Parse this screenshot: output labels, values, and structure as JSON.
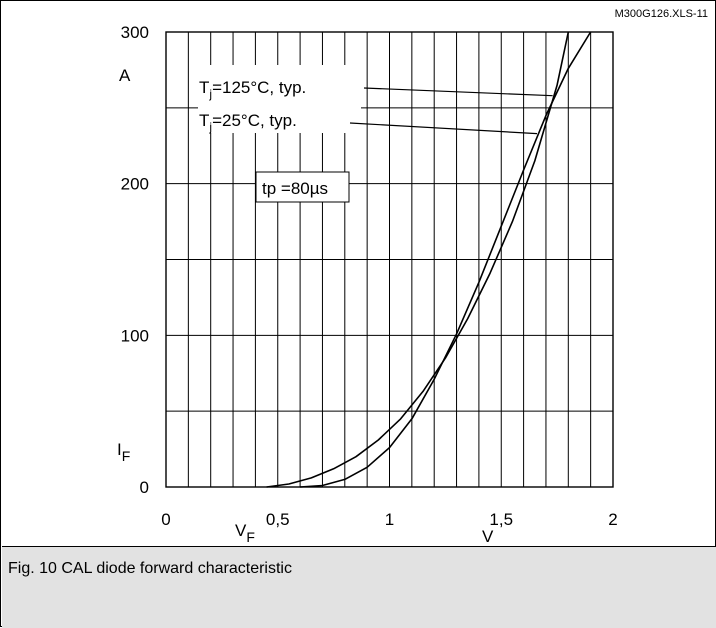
{
  "chart_data": {
    "type": "line",
    "source_tag": "M300G126.XLS-11",
    "xlim": [
      0,
      2
    ],
    "ylim": [
      0,
      300
    ],
    "x_ticks": [
      {
        "value": 0,
        "label": "0"
      },
      {
        "value": 0.5,
        "label": "0,5"
      },
      {
        "value": 1,
        "label": "1"
      },
      {
        "value": 1.5,
        "label": "1,5"
      },
      {
        "value": 2,
        "label": "2"
      }
    ],
    "y_ticks": [
      {
        "value": 0,
        "label": "0"
      },
      {
        "value": 100,
        "label": "100"
      },
      {
        "value": 200,
        "label": "200"
      },
      {
        "value": 300,
        "label": "300"
      }
    ],
    "xlabel": {
      "main": "V",
      "sub": "F"
    },
    "xunit": "V",
    "ylabel": {
      "main": "I",
      "sub": "F"
    },
    "yunit": "A",
    "grid": true,
    "series": [
      {
        "name": "Tj=125°C, typ.",
        "label_main": "T",
        "label_sub": "j",
        "label_rest": "=125°C, typ.",
        "x": [
          0.45,
          0.55,
          0.65,
          0.75,
          0.85,
          0.95,
          1.05,
          1.15,
          1.25,
          1.35,
          1.45,
          1.55,
          1.65,
          1.75,
          1.8
        ],
        "y": [
          0,
          2,
          6,
          12,
          20,
          31,
          45,
          63,
          85,
          111,
          141,
          175,
          215,
          265,
          300
        ]
      },
      {
        "name": "Tj=25°C, typ.",
        "label_main": "T",
        "label_sub": "j",
        "label_rest": "=25°C, typ.",
        "x": [
          0.6,
          0.7,
          0.8,
          0.9,
          1.0,
          1.1,
          1.2,
          1.3,
          1.4,
          1.5,
          1.6,
          1.7,
          1.8,
          1.9
        ],
        "y": [
          0,
          1,
          5,
          13,
          26,
          45,
          71,
          101,
          135,
          172,
          209,
          245,
          276,
          300
        ]
      }
    ],
    "annotation": "tp =80µs"
  },
  "caption": "Fig. 10 CAL diode forward characteristic"
}
